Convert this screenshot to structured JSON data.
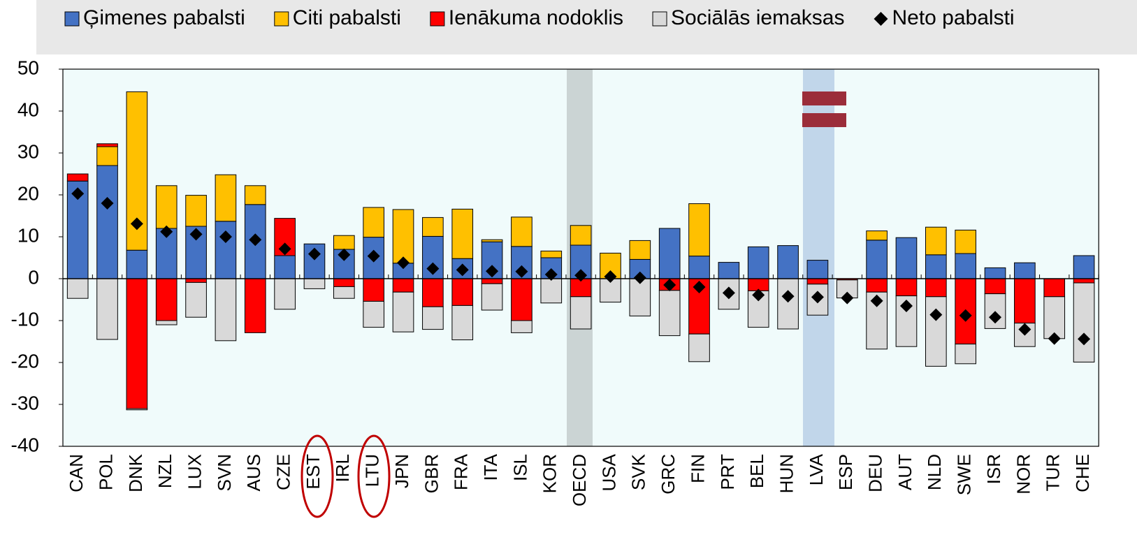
{
  "chart_data": {
    "type": "bar",
    "stacked": true,
    "categories": [
      "CAN",
      "POL",
      "DNK",
      "NZL",
      "LUX",
      "SVN",
      "AUS",
      "CZE",
      "EST",
      "IRL",
      "LTU",
      "JPN",
      "GBR",
      "FRA",
      "ITA",
      "ISL",
      "KOR",
      "OECD",
      "USA",
      "SVK",
      "GRC",
      "FIN",
      "PRT",
      "BEL",
      "HUN",
      "LVA",
      "ESP",
      "DEU",
      "AUT",
      "NLD",
      "SWE",
      "ISR",
      "NOR",
      "TUR",
      "CHE"
    ],
    "series": [
      {
        "name": "Ģimenes pabalsti",
        "color": "#4472c4",
        "values": [
          23.3,
          27,
          6.8,
          12,
          12.5,
          13.7,
          17.7,
          5.5,
          8.3,
          7,
          9.9,
          3.7,
          10.1,
          4.8,
          8.8,
          7.7,
          5,
          8,
          0,
          4.6,
          12,
          5.4,
          3.9,
          7.6,
          7.9,
          4.4,
          0,
          9.2,
          9.8,
          5.7,
          6,
          2.6,
          3.8,
          0,
          5.5
        ]
      },
      {
        "name": "Citi pabalsti",
        "color": "#ffc000",
        "values": [
          0,
          4.5,
          37.8,
          10.2,
          7.4,
          11.1,
          4.5,
          0,
          0,
          3.3,
          7.1,
          12.8,
          4.5,
          11.8,
          0.5,
          7,
          1.6,
          4.7,
          6.1,
          4.5,
          0,
          12.5,
          0,
          0,
          0,
          0,
          0,
          2.2,
          0,
          6.6,
          5.6,
          0,
          0,
          0,
          0
        ]
      },
      {
        "name": "Ienākuma nodoklis",
        "color": "#ff0000",
        "values": [
          1.7,
          0.7,
          -31,
          -10,
          -0.9,
          0,
          -12.9,
          8.9,
          0,
          -1.9,
          -5.4,
          -3.2,
          -6.7,
          -6.4,
          -1.2,
          -10,
          0,
          -4.3,
          0,
          0,
          -2.8,
          -13.2,
          0,
          -2.9,
          0,
          -1.3,
          -0.3,
          -3.2,
          -4.1,
          -4.3,
          -15.6,
          -3.6,
          -10.6,
          -4.3,
          -1
        ]
      },
      {
        "name": "Sociālās iemaksas",
        "color": "#d9d9d9",
        "values": [
          -4.7,
          -14.5,
          -0.3,
          -1,
          -8.3,
          -14.8,
          0,
          -7.3,
          -2.4,
          -2.8,
          -6.2,
          -9.5,
          -5.4,
          -8.2,
          -6.3,
          -2.9,
          -5.8,
          -7.7,
          -5.6,
          -8.9,
          -10.8,
          -6.6,
          -7.3,
          -8.7,
          -12,
          -7.4,
          -4.3,
          -13.6,
          -12.1,
          -16.6,
          -4.7,
          -8.3,
          -5.6,
          -10,
          -18.9
        ]
      },
      {
        "name": "Neto pabalsti",
        "type": "scatter",
        "color": "#000000",
        "values": [
          20.3,
          18,
          13.1,
          11.2,
          10.6,
          10,
          9.3,
          7.1,
          5.9,
          5.7,
          5.4,
          3.8,
          2.4,
          2.1,
          1.8,
          1.7,
          1,
          0.8,
          0.5,
          0.2,
          -1.5,
          -2,
          -3.4,
          -3.9,
          -4.2,
          -4.4,
          -4.6,
          -5.3,
          -6.5,
          -8.6,
          -8.8,
          -9.2,
          -12.1,
          -14.3,
          -14.4
        ]
      }
    ],
    "ylim": [
      -40,
      50
    ],
    "yticks": [
      -40,
      -30,
      -20,
      -10,
      0,
      10,
      20,
      30,
      40,
      50
    ],
    "legend": "top"
  }
}
